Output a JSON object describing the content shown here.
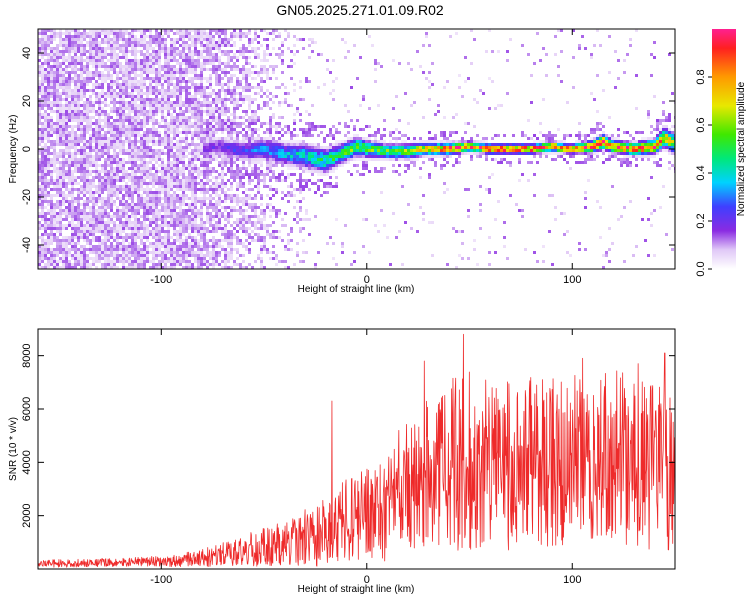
{
  "figure": {
    "title": "GN05.2025.271.01.09.R02"
  },
  "colors": {
    "snr_line": "#ee2a2a",
    "axes": "#000000",
    "background": "#ffffff"
  },
  "chart_data": [
    {
      "type": "heatmap",
      "title": "GN05.2025.271.01.09.R02",
      "xlabel": "Height of straight line (km)",
      "ylabel": "Frequency (Hz)",
      "xlim": [
        -160,
        150
      ],
      "ylim": [
        -50,
        50
      ],
      "xticks": [
        -100,
        0,
        100
      ],
      "yticks": [
        -40,
        -20,
        0,
        20,
        40
      ],
      "xtick_labels": [
        "-100",
        "0",
        "100"
      ],
      "ytick_labels": [
        "-40",
        "-20",
        "0",
        "20",
        "40"
      ],
      "colorbar": {
        "label": "Normalized spectral amplitude",
        "range": [
          0,
          1
        ],
        "ticks": [
          0.0,
          0.2,
          0.4,
          0.6,
          0.8
        ],
        "tick_labels": [
          "0.0",
          "0.2",
          "0.4",
          "0.6",
          "0.8"
        ],
        "colormap": [
          "#ffffff",
          "#e6d2f7",
          "#8a2be2",
          "#3f3fff",
          "#00d2ff",
          "#00e87a",
          "#3fe800",
          "#e8e800",
          "#ff9a00",
          "#ff2020",
          "#ff2090"
        ]
      },
      "noise_region": {
        "x_range": [
          -160,
          -40
        ],
        "freq_range": [
          -50,
          50
        ],
        "amplitude": 0.12,
        "fade_out_x": [
          -80,
          -20
        ]
      },
      "signal_track": {
        "x": [
          -80,
          -70,
          -60,
          -50,
          -40,
          -30,
          -20,
          -15,
          -10,
          -5,
          0,
          10,
          20,
          30,
          40,
          50,
          60,
          70,
          80,
          90,
          100,
          110,
          115,
          120,
          130,
          140,
          145,
          150
        ],
        "center_freq": [
          0,
          1,
          -1,
          0,
          -2,
          -3,
          -5,
          -3,
          -1,
          1,
          0,
          -1,
          -1,
          0,
          0,
          1,
          0,
          0,
          0,
          1,
          0,
          1,
          3,
          1,
          0,
          1,
          5,
          2
        ],
        "width_hz": [
          8,
          8,
          8,
          9,
          9,
          10,
          10,
          9,
          8,
          8,
          7,
          6,
          6,
          5,
          5,
          4,
          4,
          4,
          4,
          4,
          4,
          5,
          6,
          5,
          5,
          6,
          8,
          8
        ],
        "peak_amplitude": [
          0.15,
          0.2,
          0.25,
          0.3,
          0.35,
          0.4,
          0.45,
          0.5,
          0.55,
          0.55,
          0.55,
          0.55,
          0.6,
          0.75,
          0.85,
          0.9,
          0.95,
          0.9,
          0.9,
          0.85,
          0.85,
          0.85,
          0.9,
          0.85,
          0.9,
          0.85,
          0.75,
          0.6
        ]
      }
    },
    {
      "type": "line",
      "xlabel": "Height of straight line (km)",
      "ylabel": "SNR (10 * v/v)",
      "xlim": [
        -160,
        150
      ],
      "ylim": [
        0,
        9000
      ],
      "xticks": [
        -100,
        0,
        100
      ],
      "yticks": [
        2000,
        4000,
        6000,
        8000
      ],
      "xtick_labels": [
        "-100",
        "0",
        "100"
      ],
      "ytick_labels": [
        "2000",
        "4000",
        "6000",
        "8000"
      ],
      "series": [
        {
          "name": "SNR",
          "envelope_x": [
            -160,
            -120,
            -100,
            -80,
            -60,
            -40,
            -20,
            -10,
            0,
            10,
            20,
            30,
            40,
            50,
            60,
            70,
            80,
            90,
            100,
            110,
            120,
            130,
            140,
            150
          ],
          "envelope_mean": [
            200,
            250,
            300,
            400,
            650,
            1000,
            1400,
            1800,
            2200,
            2600,
            3000,
            3600,
            4000,
            4100,
            3900,
            3800,
            4000,
            4100,
            4200,
            4000,
            4100,
            4000,
            4100,
            3900
          ],
          "envelope_spread": [
            150,
            150,
            200,
            350,
            600,
            900,
            1300,
            1700,
            2000,
            2300,
            2500,
            2900,
            3300,
            3400,
            3300,
            3200,
            3300,
            3400,
            3400,
            3300,
            3400,
            3500,
            3600,
            3100
          ],
          "notable_peaks": [
            {
              "x": 28,
              "y": 7800
            },
            {
              "x": 47,
              "y": 8800
            },
            {
              "x": 61,
              "y": 6800
            },
            {
              "x": 105,
              "y": 7900
            },
            {
              "x": 132,
              "y": 7700
            },
            {
              "x": 145,
              "y": 8100
            },
            {
              "x": -17,
              "y": 6300
            }
          ]
        }
      ]
    }
  ]
}
